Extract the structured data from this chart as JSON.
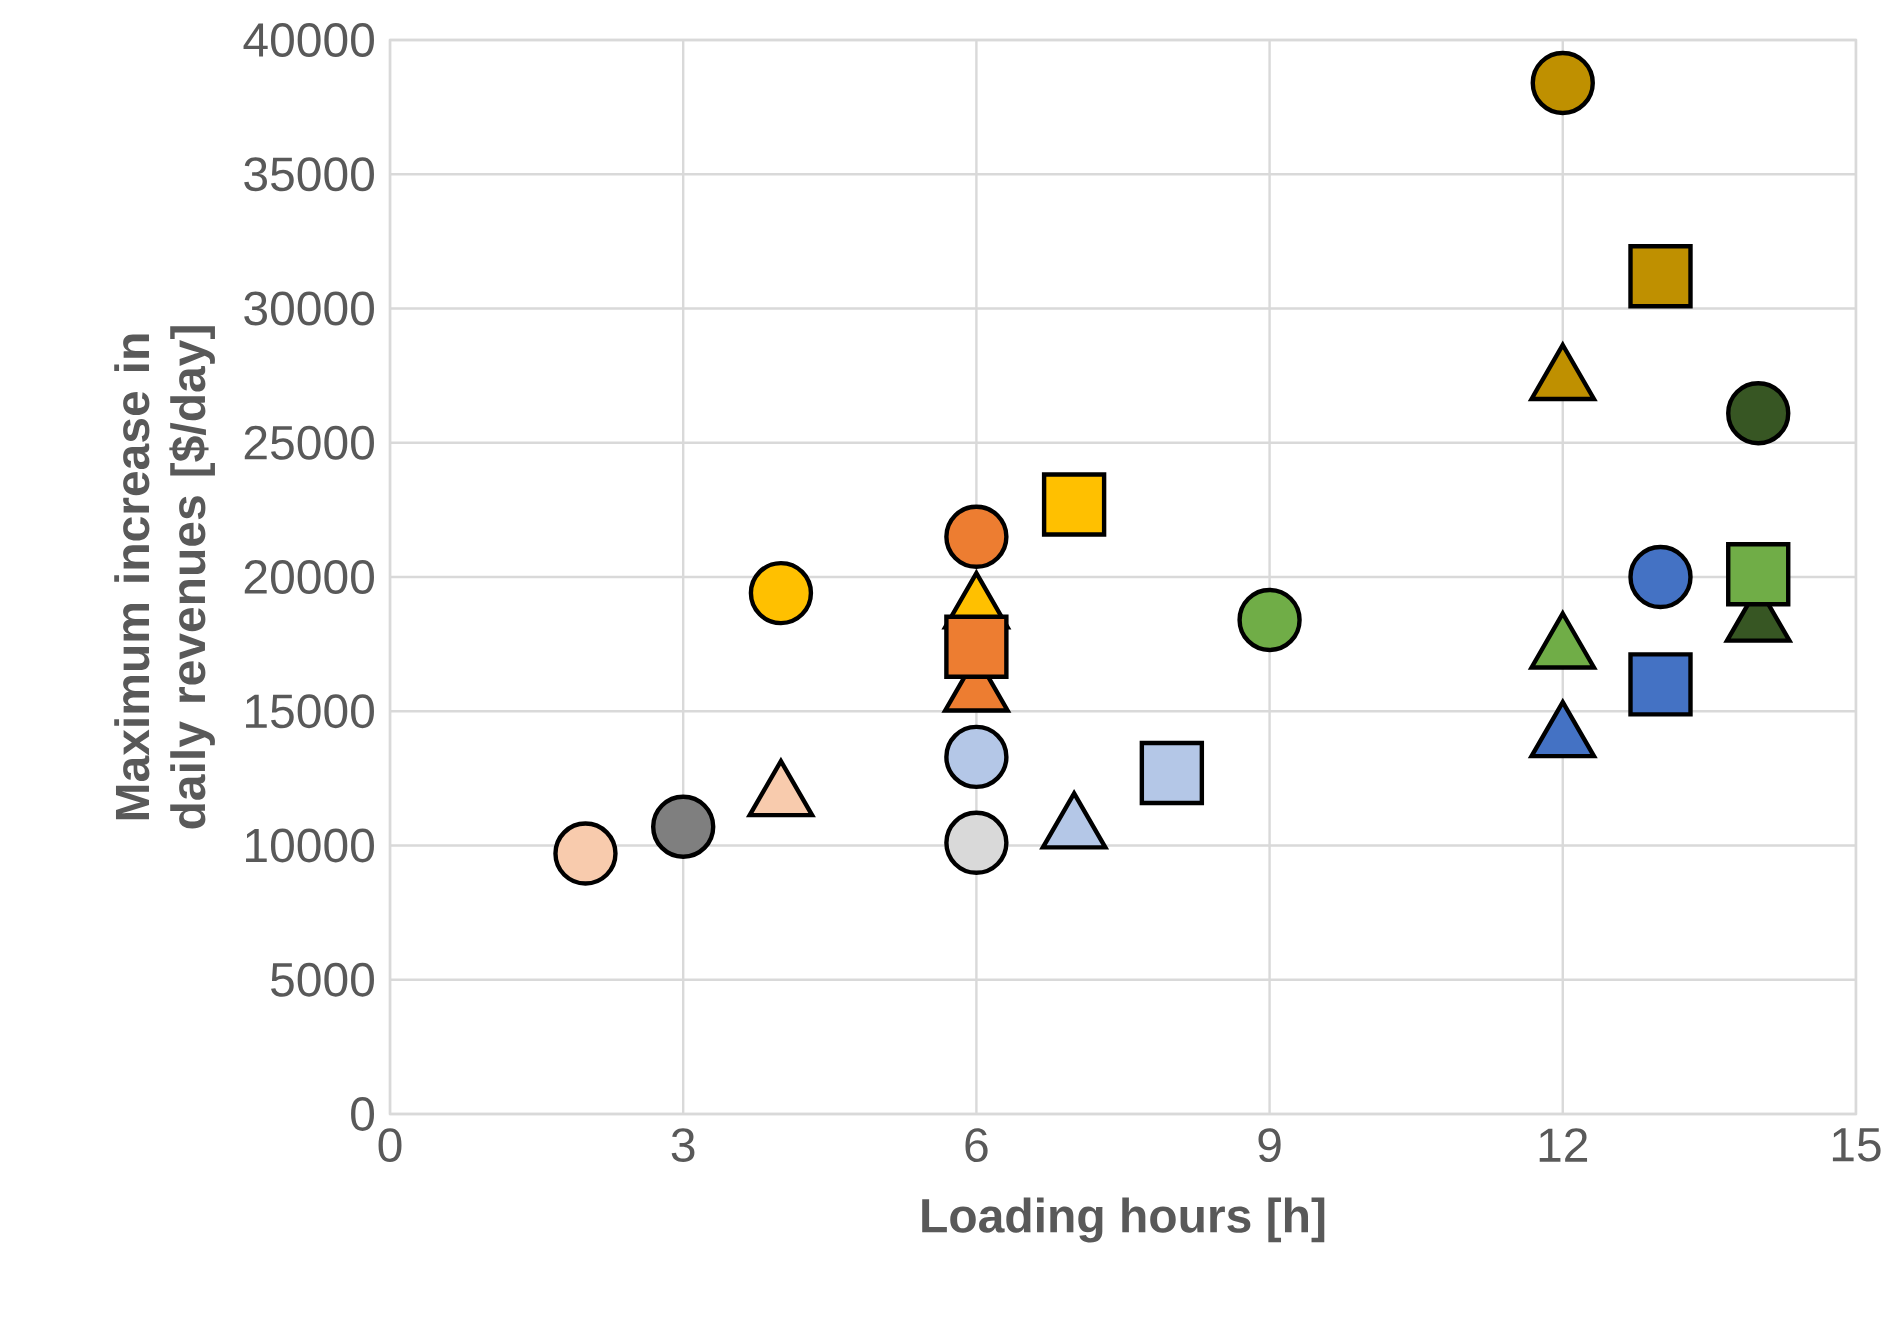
{
  "chart_data": {
    "type": "scatter",
    "xlabel": "Loading hours [h]",
    "ylabel": "Maximum increase in daily revenues [$/day]",
    "xlim": [
      0,
      15
    ],
    "xticks": [
      0,
      3,
      6,
      9,
      12,
      15
    ],
    "ylim": [
      0,
      40000
    ],
    "yticks": [
      0,
      5000,
      10000,
      15000,
      20000,
      25000,
      30000,
      35000,
      40000
    ],
    "grid": true,
    "series": [
      {
        "marker": "triangle",
        "x": [
          4,
          6,
          6,
          7,
          12,
          12,
          12,
          14
        ],
        "values": [
          11800,
          18800,
          15700,
          10600,
          27300,
          17300,
          14000,
          18300
        ],
        "colors": [
          "#f8cbad",
          "#ffc000",
          "#ed7d31",
          "#b4c7e7",
          "#bf9000",
          "#70ad47",
          "#4472c4",
          "#375623"
        ]
      },
      {
        "marker": "circle",
        "x": [
          2,
          3,
          4,
          6,
          6,
          6,
          9,
          12,
          13,
          14
        ],
        "values": [
          9700,
          10700,
          19400,
          21500,
          13300,
          10100,
          18400,
          38400,
          20000,
          26100
        ],
        "colors": [
          "#f8cbad",
          "#7f7f7f",
          "#ffc000",
          "#ed7d31",
          "#b4c7e7",
          "#d9d9d9",
          "#70ad47",
          "#bf9000",
          "#4472c4",
          "#375623"
        ]
      },
      {
        "marker": "square",
        "x": [
          6,
          7,
          8,
          13,
          13,
          14
        ],
        "values": [
          17400,
          22700,
          12700,
          31200,
          16000,
          20100
        ],
        "colors": [
          "#ed7d31",
          "#ffc000",
          "#b4c7e7",
          "#bf9000",
          "#4472c4",
          "#70ad47"
        ]
      }
    ]
  }
}
